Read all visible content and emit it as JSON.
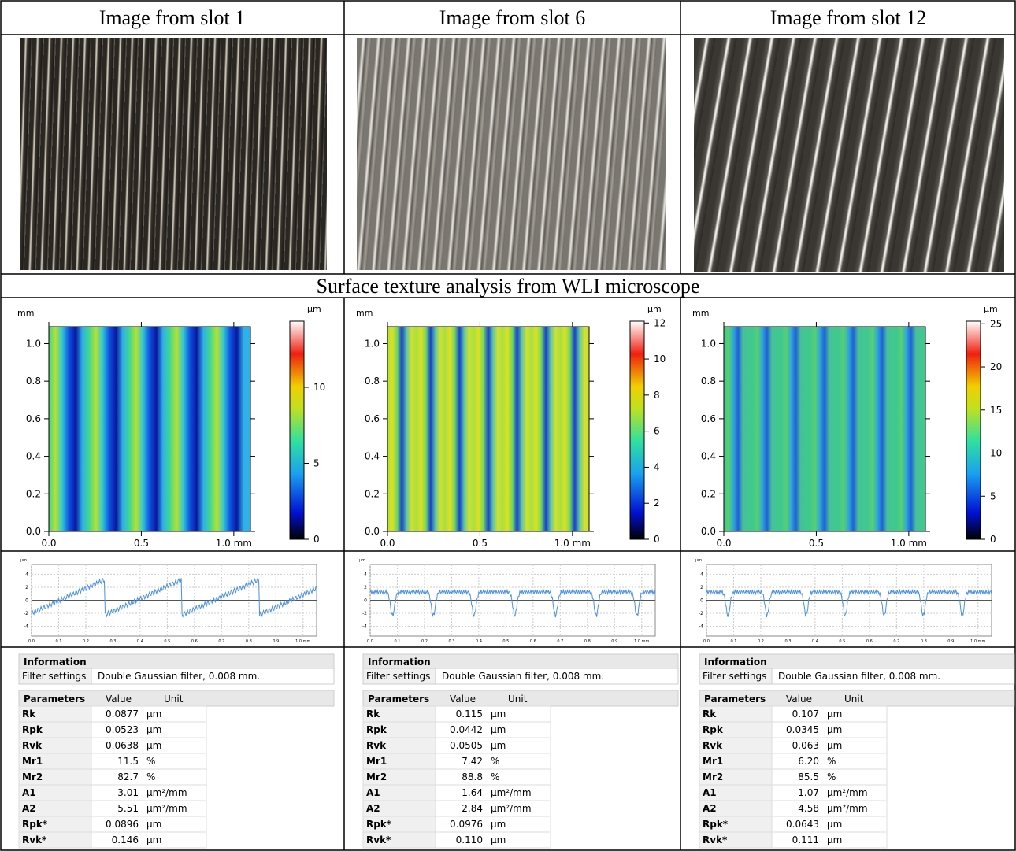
{
  "header": {
    "cells": [
      "Image from slot 1",
      "Image from slot 6",
      "Image from slot 12"
    ]
  },
  "section_title": "Surface texture analysis from WLI microscope",
  "map_axes": {
    "y_unit": "mm",
    "z_unit": "µm",
    "xlim": [
      0,
      1.09
    ],
    "ylim": [
      0,
      1.09
    ],
    "xticks": [
      {
        "value": 0,
        "label": "0.0"
      },
      {
        "value": 0.5,
        "label": "0.5"
      },
      {
        "value": 1,
        "label": "1.0 mm"
      }
    ],
    "yticks": [
      {
        "value": 0,
        "label": "0.0"
      },
      {
        "value": 0.2,
        "label": "0.2"
      },
      {
        "value": 0.4,
        "label": "0.4"
      },
      {
        "value": 0.6,
        "label": "0.6"
      },
      {
        "value": 0.8,
        "label": "0.8"
      },
      {
        "value": 1,
        "label": "1.0"
      }
    ]
  },
  "maps": [
    {
      "zlim": [
        0,
        14.35
      ],
      "zticks": [
        0,
        5,
        10
      ]
    },
    {
      "zlim": [
        0,
        12.1
      ],
      "zticks": [
        0,
        2,
        4,
        6,
        8,
        10,
        12
      ]
    },
    {
      "zlim": [
        0,
        25.3
      ],
      "zticks": [
        0,
        5,
        10,
        15,
        20,
        25
      ]
    }
  ],
  "profile_axes": {
    "y_unit": "µm",
    "ylim": [
      -5.5,
      5.5
    ],
    "yticks": [
      -4,
      -2,
      0,
      2,
      4
    ],
    "xlim": [
      0,
      1.05
    ],
    "xticks": [
      {
        "value": 0,
        "label": "0.0"
      },
      {
        "value": 0.1,
        "label": "0.1"
      },
      {
        "value": 0.2,
        "label": "0.2"
      },
      {
        "value": 0.3,
        "label": "0.3"
      },
      {
        "value": 0.4,
        "label": "0.4"
      },
      {
        "value": 0.5,
        "label": "0.5"
      },
      {
        "value": 0.6,
        "label": "0.6"
      },
      {
        "value": 0.7,
        "label": "0.7"
      },
      {
        "value": 0.8,
        "label": "0.8"
      },
      {
        "value": 0.9,
        "label": "0.9"
      },
      {
        "value": 1,
        "label": "1.0 mm"
      }
    ]
  },
  "tables": [
    {
      "info_title": "Information",
      "filter_label": "Filter settings",
      "filter_value": "Double Gaussian filter, 0.008 mm.",
      "param_headers": [
        "Parameters",
        "Value",
        "Unit"
      ],
      "rows": [
        [
          "Rk",
          "0.0877",
          "µm"
        ],
        [
          "Rpk",
          "0.0523",
          "µm"
        ],
        [
          "Rvk",
          "0.0638",
          "µm"
        ],
        [
          "Mr1",
          "11.5",
          "%"
        ],
        [
          "Mr2",
          "82.7",
          "%"
        ],
        [
          "A1",
          "3.01",
          "µm²/mm"
        ],
        [
          "A2",
          "5.51",
          "µm²/mm"
        ],
        [
          "Rpk*",
          "0.0896",
          "µm"
        ],
        [
          "Rvk*",
          "0.146",
          "µm"
        ]
      ]
    },
    {
      "info_title": "Information",
      "filter_label": "Filter settings",
      "filter_value": "Double Gaussian filter, 0.008 mm.",
      "param_headers": [
        "Parameters",
        "Value",
        "Unit"
      ],
      "rows": [
        [
          "Rk",
          "0.115",
          "µm"
        ],
        [
          "Rpk",
          "0.0442",
          "µm"
        ],
        [
          "Rvk",
          "0.0505",
          "µm"
        ],
        [
          "Mr1",
          "7.42",
          "%"
        ],
        [
          "Mr2",
          "88.8",
          "%"
        ],
        [
          "A1",
          "1.64",
          "µm²/mm"
        ],
        [
          "A2",
          "2.84",
          "µm²/mm"
        ],
        [
          "Rpk*",
          "0.0976",
          "µm"
        ],
        [
          "Rvk*",
          "0.110",
          "µm"
        ]
      ]
    },
    {
      "info_title": "Information",
      "filter_label": "Filter settings",
      "filter_value": "Double Gaussian filter, 0.008 mm.",
      "param_headers": [
        "Parameters",
        "Value",
        "Unit"
      ],
      "rows": [
        [
          "Rk",
          "0.107",
          "µm"
        ],
        [
          "Rpk",
          "0.0345",
          "µm"
        ],
        [
          "Rvk",
          "0.063",
          "µm"
        ],
        [
          "Mr1",
          "6.20",
          "%"
        ],
        [
          "Mr2",
          "85.5",
          "%"
        ],
        [
          "A1",
          "1.07",
          "µm²/mm"
        ],
        [
          "A2",
          "4.58",
          "µm²/mm"
        ],
        [
          "Rpk*",
          "0.0643",
          "µm"
        ],
        [
          "Rvk*",
          "0.111",
          "µm"
        ]
      ]
    }
  ]
}
